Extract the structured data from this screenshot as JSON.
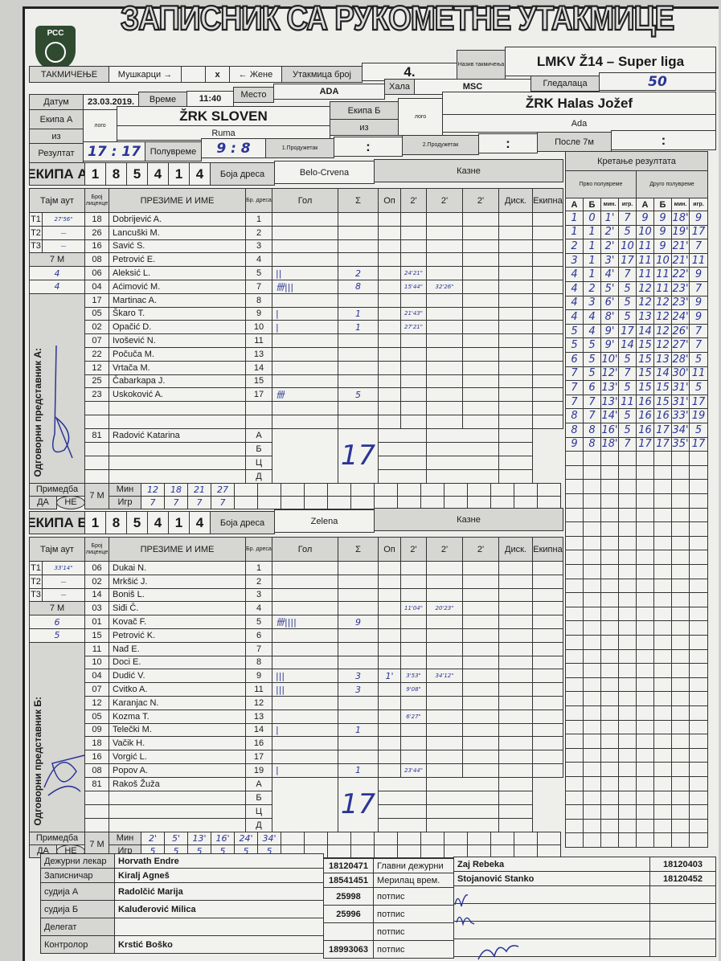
{
  "title": "ЗАПИСНИК СА РУКОМЕТНЕ УТАКМИЦЕ",
  "logo_text": "РСС",
  "header": {
    "competition_label": "ТАКМИЧЕЊЕ",
    "men_label": "Мушкарци →",
    "selected_mark": "x",
    "women_label": "← Жене",
    "match_no_label": "Утакмица број",
    "match_no": "4.",
    "competition_name_label": "Назив такмичења",
    "competition_name": "LMKV Ž14 – Super liga",
    "hall_label": "Хала",
    "hall": "MSC",
    "spectators_label": "Гледалаца",
    "spectators": "50",
    "date_label": "Датум",
    "date": "23.03.2019.",
    "time_label": "Време",
    "time": "11:40",
    "place_label": "Место",
    "place": "ADA",
    "team_a_label": "Екипа А",
    "team_a": "ŽRK SLOVEN",
    "from_label": "из",
    "team_a_city": "Ruma",
    "team_b_label": "Екипа Б",
    "team_b": "ŽRK Halas Jožef",
    "team_b_city": "Ada",
    "logo_placeholder": "лого",
    "result_label": "Резултат",
    "result": "17 : 17",
    "half_label": "Полувреме",
    "half": "9 : 8",
    "ot1_label": "1.Продужетак",
    "ot1": ":",
    "ot2_label": "2.Продужетак",
    "ot2": ":",
    "after7m_label": "После 7м",
    "after7m": ":"
  },
  "columns": {
    "timeout": "Тајм аут",
    "license": "Број лиценце",
    "name": "ПРЕЗИМЕ И ИМЕ",
    "jersey": "Бр. дреса",
    "goals": "Гол",
    "sum": "Σ",
    "warn": "Оп",
    "p1": "2'",
    "p2": "2'",
    "p3": "2'",
    "disq": "Диск.",
    "team": "Екипна",
    "jersey_color": "Боја дреса",
    "penalties": "Казне",
    "seven_m": "7 M",
    "remark": "Примедба",
    "yes": "ДА",
    "no": "НЕ",
    "min": "Мин",
    "igr": "Игр"
  },
  "team_a": {
    "label": "ЕКИПА А",
    "code": [
      "1",
      "8",
      "5",
      "4",
      "1",
      "4"
    ],
    "jersey_color": "Belo-Crvena",
    "timeouts": [
      {
        "t": "T1",
        "v": "27'56\""
      },
      {
        "t": "T2",
        "v": "—"
      },
      {
        "t": "T3",
        "v": "—"
      }
    ],
    "seven_m": [
      "4",
      "4"
    ],
    "representative_label": "Одговорни представник А:",
    "players": [
      [
        "18",
        "Dobrijević A.",
        "1",
        "",
        "",
        "",
        "",
        ""
      ],
      [
        "26",
        "Lancuški M.",
        "2",
        "",
        "",
        "",
        "",
        ""
      ],
      [
        "16",
        "Savić S.",
        "3",
        "",
        "",
        "",
        "",
        ""
      ],
      [
        "08",
        "Petrović E.",
        "4",
        "",
        "",
        "",
        "",
        ""
      ],
      [
        "06",
        "Aleksić L.",
        "5",
        "||",
        "2",
        "",
        "24'21\"",
        ""
      ],
      [
        "04",
        "Aćimović M.",
        "7",
        "卌|||",
        "8",
        "",
        "15'44\"",
        "32'26\""
      ],
      [
        "17",
        "Martinac A.",
        "8",
        "",
        "",
        "",
        "",
        ""
      ],
      [
        "05",
        "Škaro T.",
        "9",
        "|",
        "1",
        "",
        "21'43\"",
        ""
      ],
      [
        "02",
        "Opačić D.",
        "10",
        "|",
        "1",
        "",
        "27'21\"",
        ""
      ],
      [
        "07",
        "Ivošević N.",
        "11",
        "",
        "",
        "",
        "",
        ""
      ],
      [
        "22",
        "Počuča M.",
        "13",
        "",
        "",
        "",
        "",
        ""
      ],
      [
        "12",
        "Vrtača M.",
        "14",
        "",
        "",
        "",
        "",
        ""
      ],
      [
        "25",
        "Čabarkapa J.",
        "15",
        "",
        "",
        "",
        "",
        ""
      ],
      [
        "23",
        "Uskoković A.",
        "17",
        "卌",
        "5",
        "",
        "",
        ""
      ],
      [
        "",
        "",
        "",
        "",
        "",
        "",
        "",
        ""
      ],
      [
        "",
        "",
        "",
        "",
        "",
        "",
        "",
        ""
      ]
    ],
    "officials": [
      [
        "81",
        "Radović Katarina",
        "А"
      ],
      [
        "",
        "",
        "Б"
      ],
      [
        "",
        "",
        "Ц"
      ],
      [
        "",
        "",
        "Д"
      ]
    ],
    "total": "17",
    "remark": "НЕ",
    "seven_m_min": [
      "12",
      "18",
      "21",
      "27"
    ],
    "seven_m_igr": [
      "7",
      "7",
      "7",
      "7"
    ]
  },
  "team_b": {
    "label": "ЕКИПА Б",
    "code": [
      "1",
      "8",
      "5",
      "4",
      "1",
      "4"
    ],
    "jersey_color": "Zelena",
    "timeouts": [
      {
        "t": "T1",
        "v": "33'14\""
      },
      {
        "t": "T2",
        "v": "—"
      },
      {
        "t": "T3",
        "v": "—"
      }
    ],
    "seven_m": [
      "6",
      "5"
    ],
    "representative_label": "Одговорни представник Б:",
    "players": [
      [
        "06",
        "Dukai N.",
        "1",
        "",
        "",
        "",
        "",
        ""
      ],
      [
        "02",
        "Mrkšić J.",
        "2",
        "",
        "",
        "",
        "",
        ""
      ],
      [
        "14",
        "Boniš L.",
        "3",
        "",
        "",
        "",
        "",
        ""
      ],
      [
        "03",
        "Siđi Č.",
        "4",
        "",
        "",
        "",
        "11'04\"",
        "20'23\""
      ],
      [
        "01",
        "Kovač F.",
        "5",
        "卌||||",
        "9",
        "",
        "",
        ""
      ],
      [
        "15",
        "Petrović K.",
        "6",
        "",
        "",
        "",
        "",
        ""
      ],
      [
        "11",
        "Nađ E.",
        "7",
        "",
        "",
        "",
        "",
        ""
      ],
      [
        "10",
        "Doci E.",
        "8",
        "",
        "",
        "",
        "",
        ""
      ],
      [
        "04",
        "Dudić V.",
        "9",
        "|||",
        "3",
        "1'",
        "3'53\"",
        "34'12\""
      ],
      [
        "07",
        "Cvitko A.",
        "11",
        "|||",
        "3",
        "",
        "9'08\"",
        ""
      ],
      [
        "12",
        "Karanjac N.",
        "12",
        "",
        "",
        "",
        "",
        ""
      ],
      [
        "05",
        "Kozma T.",
        "13",
        "",
        "",
        "",
        "6'27\"",
        ""
      ],
      [
        "09",
        "Telečki M.",
        "14",
        "|",
        "1",
        "",
        "",
        ""
      ],
      [
        "18",
        "Vačik H.",
        "16",
        "",
        "",
        "",
        "",
        ""
      ],
      [
        "16",
        "Vorgić L.",
        "17",
        "",
        "",
        "",
        "",
        ""
      ],
      [
        "08",
        "Popov A.",
        "19",
        "|",
        "1",
        "",
        "23'44\"",
        ""
      ]
    ],
    "officials": [
      [
        "81",
        "Rakoš Žuža",
        "А"
      ],
      [
        "",
        "",
        "Б"
      ],
      [
        "",
        "",
        "Ц"
      ],
      [
        "",
        "",
        "Д"
      ]
    ],
    "total": "17",
    "remark": "НЕ",
    "seven_m_min": [
      "2'",
      "5'",
      "13'",
      "16'",
      "24'",
      "34'"
    ],
    "seven_m_igr": [
      "5",
      "5",
      "5",
      "5",
      "5",
      "5"
    ]
  },
  "progression": {
    "title": "Кретање резултата",
    "first_half_label": "Прво полувреме",
    "second_half_label": "Друго полувреме",
    "cols": [
      "А",
      "Б",
      "мин.",
      "игр.",
      "А",
      "Б",
      "мин.",
      "игр."
    ],
    "first_half": [
      [
        "1",
        "0",
        "1'",
        "7"
      ],
      [
        "1",
        "1",
        "2'",
        "5"
      ],
      [
        "2",
        "1",
        "2'",
        "10"
      ],
      [
        "3",
        "1",
        "3'",
        "17"
      ],
      [
        "4",
        "1",
        "4'",
        "7"
      ],
      [
        "4",
        "2",
        "5'",
        "5"
      ],
      [
        "4",
        "3",
        "6'",
        "5"
      ],
      [
        "4",
        "4",
        "8'",
        "5"
      ],
      [
        "5",
        "4",
        "9'",
        "17"
      ],
      [
        "5",
        "5",
        "9'",
        "14"
      ],
      [
        "6",
        "5",
        "10'",
        "5"
      ],
      [
        "7",
        "5",
        "12'",
        "7"
      ],
      [
        "7",
        "6",
        "13'",
        "5"
      ],
      [
        "7",
        "7",
        "13'",
        "11"
      ],
      [
        "8",
        "7",
        "14'",
        "5"
      ],
      [
        "8",
        "8",
        "16'",
        "5"
      ],
      [
        "9",
        "8",
        "18'",
        "7"
      ]
    ],
    "second_half": [
      [
        "9",
        "9",
        "18'",
        "9"
      ],
      [
        "10",
        "9",
        "19'",
        "17"
      ],
      [
        "11",
        "9",
        "21'",
        "7"
      ],
      [
        "11",
        "10",
        "21'",
        "11"
      ],
      [
        "11",
        "11",
        "22'",
        "9"
      ],
      [
        "12",
        "11",
        "23'",
        "7"
      ],
      [
        "12",
        "12",
        "23'",
        "9"
      ],
      [
        "13",
        "12",
        "24'",
        "9"
      ],
      [
        "14",
        "12",
        "26'",
        "7"
      ],
      [
        "15",
        "12",
        "27'",
        "7"
      ],
      [
        "15",
        "13",
        "28'",
        "5"
      ],
      [
        "15",
        "14",
        "30'",
        "11"
      ],
      [
        "15",
        "15",
        "31'",
        "5"
      ],
      [
        "16",
        "15",
        "31'",
        "17"
      ],
      [
        "16",
        "16",
        "33'",
        "19"
      ],
      [
        "16",
        "17",
        "34'",
        "5"
      ],
      [
        "17",
        "17",
        "35'",
        "17"
      ]
    ]
  },
  "staff": {
    "rows": [
      {
        "role": "Дежурни лекар",
        "name": "Horvath Endre",
        "no": "18120471",
        "label": "Главни дежурни",
        "right_name": "Zaj Rebeka",
        "right_no": "18120403"
      },
      {
        "role": "Записничар",
        "name": "Kiralj Agneš",
        "no": "18541451",
        "label": "Мерилац врем.",
        "right_name": "Stojanović Stanko",
        "right_no": "18120452"
      },
      {
        "role": "судија А",
        "name": "Radolčić Marija",
        "no": "25998",
        "label": "потпис",
        "right_name": "",
        "right_no": ""
      },
      {
        "role": "судија Б",
        "name": "Kaluđerović Milica",
        "no": "25996",
        "label": "потпис",
        "right_name": "",
        "right_no": ""
      },
      {
        "role": "Делегат",
        "name": "",
        "no": "",
        "label": "потпис",
        "right_name": "",
        "right_no": ""
      },
      {
        "role": "Контролор",
        "name": "Krstić Boško",
        "no": "18993063",
        "label": "потпис",
        "right_name": "",
        "right_no": ""
      }
    ]
  },
  "colors": {
    "ink": "#2a3596",
    "form_grey": "#d6d6d2",
    "paper": "#eeeeeb"
  }
}
